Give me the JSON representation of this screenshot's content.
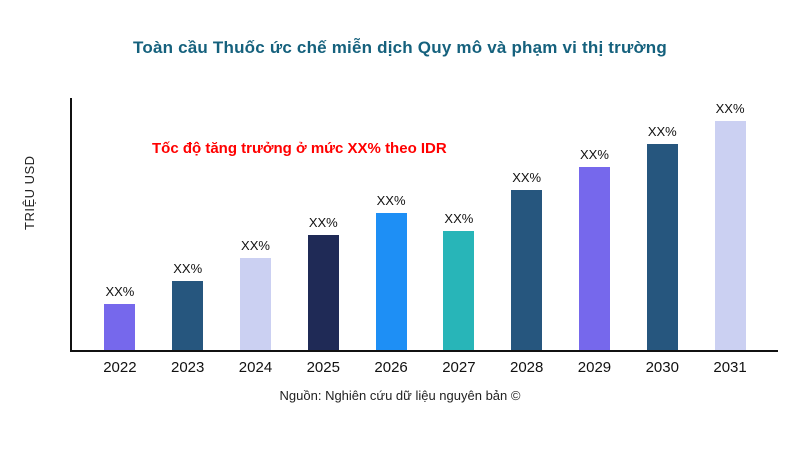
{
  "title": "Toàn cầu Thuốc ức chế miễn dịch Quy mô và phạm vi thị trường",
  "ylabel": "TRIỆU USD",
  "annotation": "Tốc độ tăng trưởng ở mức XX% theo IDR",
  "source": "Nguồn: Nghiên cứu dữ liệu nguyên bản ©",
  "colors": {
    "title": "#15617D",
    "annotation": "#FF0000",
    "axis": "#111111"
  },
  "chart_data": {
    "type": "bar",
    "title": "Toàn cầu Thuốc ức chế miễn dịch Quy mô và phạm vi thị trường",
    "xlabel": "",
    "ylabel": "TRIỆU USD",
    "categories": [
      "2022",
      "2023",
      "2024",
      "2025",
      "2026",
      "2027",
      "2028",
      "2029",
      "2030",
      "2031"
    ],
    "values": [
      20,
      30,
      40,
      50,
      60,
      52,
      70,
      80,
      90,
      100
    ],
    "values_note": "relative heights 0-100 estimated from pixels; numeric values are masked as XX% in the figure",
    "bar_labels": [
      "XX%",
      "XX%",
      "XX%",
      "XX%",
      "XX%",
      "XX%",
      "XX%",
      "XX%",
      "XX%",
      "XX%"
    ],
    "bar_colors": [
      "#7668EC",
      "#26567E",
      "#CBD0F2",
      "#1F2A56",
      "#1E8FF5",
      "#28B5B8",
      "#26567E",
      "#7668EC",
      "#26567E",
      "#CBD0F2"
    ],
    "ylim": [
      0,
      110
    ],
    "grid": false,
    "legend": false,
    "annotation": "Tốc độ tăng trưởng ở mức XX% theo IDR",
    "annotation_color": "#FF0000"
  }
}
